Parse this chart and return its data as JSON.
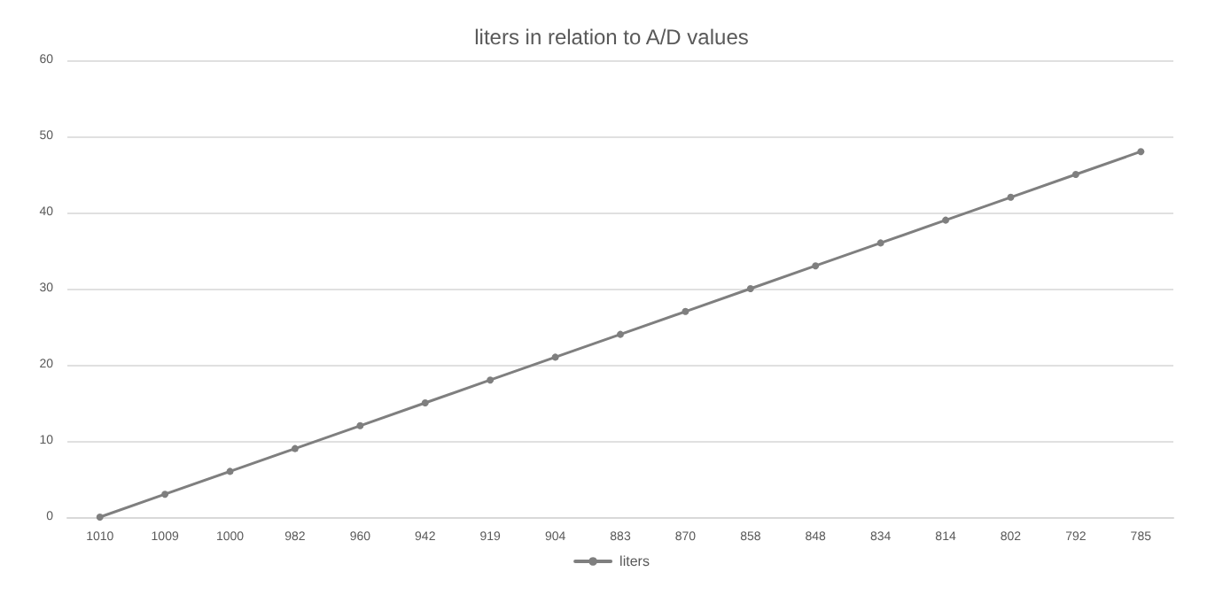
{
  "chart_data": {
    "type": "line",
    "title": "liters in relation to A/D values",
    "categories": [
      "1010",
      "1009",
      "1000",
      "982",
      "960",
      "942",
      "919",
      "904",
      "883",
      "870",
      "858",
      "848",
      "834",
      "814",
      "802",
      "792",
      "785"
    ],
    "series": [
      {
        "name": "liters",
        "color": "#7f7f7f",
        "values": [
          0,
          3,
          6,
          9,
          12,
          15,
          18,
          21,
          24,
          27,
          30,
          33,
          36,
          39,
          42,
          45,
          48
        ]
      }
    ],
    "ylim": [
      0,
      60
    ],
    "yticks": [
      0,
      10,
      20,
      30,
      40,
      50,
      60
    ],
    "grid": "y",
    "legend": "bottom",
    "marker": "circle",
    "line_style": "solid"
  }
}
